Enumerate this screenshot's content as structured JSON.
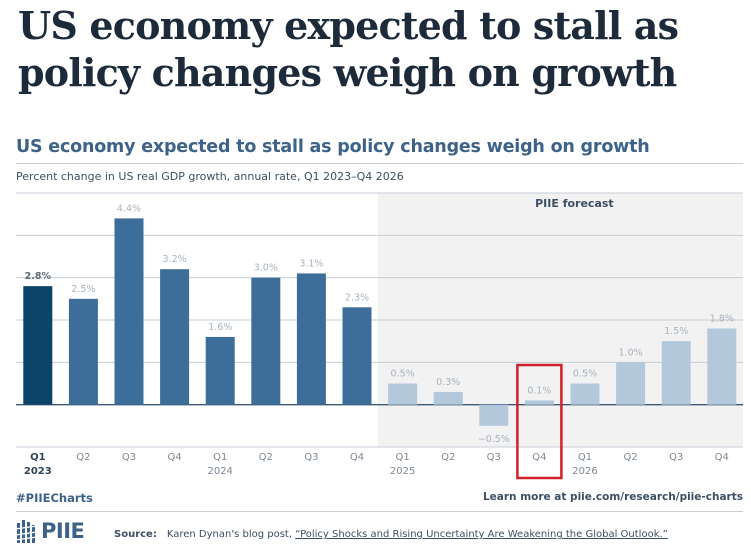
{
  "headline": "US economy expected to stall as policy changes weigh on growth",
  "chart_data": {
    "type": "bar",
    "title": "US economy expected to stall as policy changes weigh on growth",
    "subtitle": "Percent change in US real GDP growth, annual rate, Q1 2023–Q4 2026",
    "xlabel": "",
    "ylabel": "",
    "ylim": [
      -1,
      5
    ],
    "gridlines": [
      -1,
      0,
      1,
      2,
      3,
      4,
      5
    ],
    "grid": true,
    "categories": [
      {
        "quarter": "Q1",
        "year": "2023"
      },
      {
        "quarter": "Q2",
        "year": ""
      },
      {
        "quarter": "Q3",
        "year": ""
      },
      {
        "quarter": "Q4",
        "year": ""
      },
      {
        "quarter": "Q1",
        "year": "2024"
      },
      {
        "quarter": "Q2",
        "year": ""
      },
      {
        "quarter": "Q3",
        "year": ""
      },
      {
        "quarter": "Q4",
        "year": ""
      },
      {
        "quarter": "Q1",
        "year": "2025"
      },
      {
        "quarter": "Q2",
        "year": ""
      },
      {
        "quarter": "Q3",
        "year": ""
      },
      {
        "quarter": "Q4",
        "year": ""
      },
      {
        "quarter": "Q1",
        "year": "2026"
      },
      {
        "quarter": "Q2",
        "year": ""
      },
      {
        "quarter": "Q3",
        "year": ""
      },
      {
        "quarter": "Q4",
        "year": ""
      }
    ],
    "values": [
      2.8,
      2.5,
      4.4,
      3.2,
      1.6,
      3.0,
      3.1,
      2.3,
      0.5,
      0.3,
      -0.5,
      0.1,
      0.5,
      1.0,
      1.5,
      1.8
    ],
    "labels": [
      "2.8%",
      "2.5%",
      "4.4%",
      "3.2%",
      "1.6%",
      "3.0%",
      "3.1%",
      "2.3%",
      "0.5%",
      "0.3%",
      "−0.5%",
      "0.1%",
      "0.5%",
      "1.0%",
      "1.5%",
      "1.8%"
    ],
    "highlighted_index": 0,
    "forecast_start_index": 8,
    "forecast_label": "PIIE forecast",
    "annotated_index": 11,
    "colors": {
      "highlight": "#0c4469",
      "actual": "#3d6d99",
      "forecast": "#b4c8dc",
      "forecast_bg": "#f2f2f2",
      "gridline": "#c7ced5",
      "zero_line": "#3d5a78",
      "label": "#a9b4bf",
      "axis_text": "#7d8893",
      "annotation_box": "#d0202a"
    }
  },
  "footer": {
    "hashtag": "#PIIECharts",
    "learn_more": "Learn more at piie.com/research/piie-charts",
    "logo_text": "PIIE",
    "source_label": "Source:",
    "source_text": "Karen Dynan's blog post, ",
    "source_link": "“Policy Shocks and Rising Uncertainty Are Weakening the Global Outlook.”"
  }
}
